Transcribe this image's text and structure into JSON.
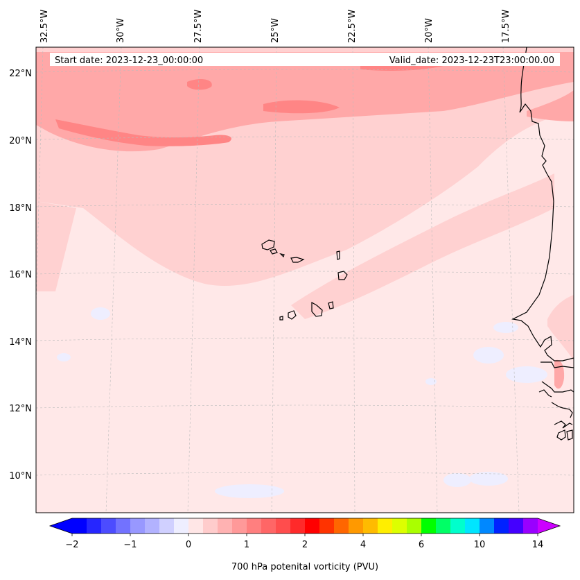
{
  "map": {
    "header": {
      "start_date": "Start date: 2023-12-23_00:00:00",
      "valid_date": "Valid_date: 2023-12-23T23:00:00.00"
    },
    "lon_labels": [
      "32.5°W",
      "30°W",
      "27.5°W",
      "25°W",
      "22.5°W",
      "20°W",
      "17.5°W"
    ],
    "lat_labels": [
      "22°N",
      "20°N",
      "18°N",
      "16°N",
      "14°N",
      "12°N",
      "10°N"
    ],
    "variable": "700 hPa potenital vorticity (PVU)"
  },
  "colorbar": {
    "tick_labels": [
      "−2",
      "−1",
      "0",
      "1",
      "2",
      "4",
      "6",
      "10",
      "14"
    ],
    "colors": [
      "#0000ff",
      "#2626ff",
      "#4c4cff",
      "#7272ff",
      "#9898ff",
      "#b2b2ff",
      "#d0d0ff",
      "#eeeeff",
      "#ffe6e6",
      "#ffcccc",
      "#ffb2b2",
      "#ff9999",
      "#ff7f7f",
      "#ff6666",
      "#ff4d4d",
      "#ff2a2a",
      "#ff0000",
      "#ff3300",
      "#ff6600",
      "#ff9900",
      "#ffbb00",
      "#ffee00",
      "#ddff00",
      "#aaff00",
      "#00ff00",
      "#00ff66",
      "#00ffcc",
      "#00e5ff",
      "#0088ff",
      "#0022ff",
      "#4400ff",
      "#9900ff"
    ],
    "under_color": "#0000ff",
    "over_color": "#cc00ff"
  },
  "palette": {
    "background": "#ffe8e8",
    "light": "#ffd1d1",
    "medium": "#ffa8a8",
    "strong": "#ff8585",
    "negative": "#eeeeff"
  }
}
